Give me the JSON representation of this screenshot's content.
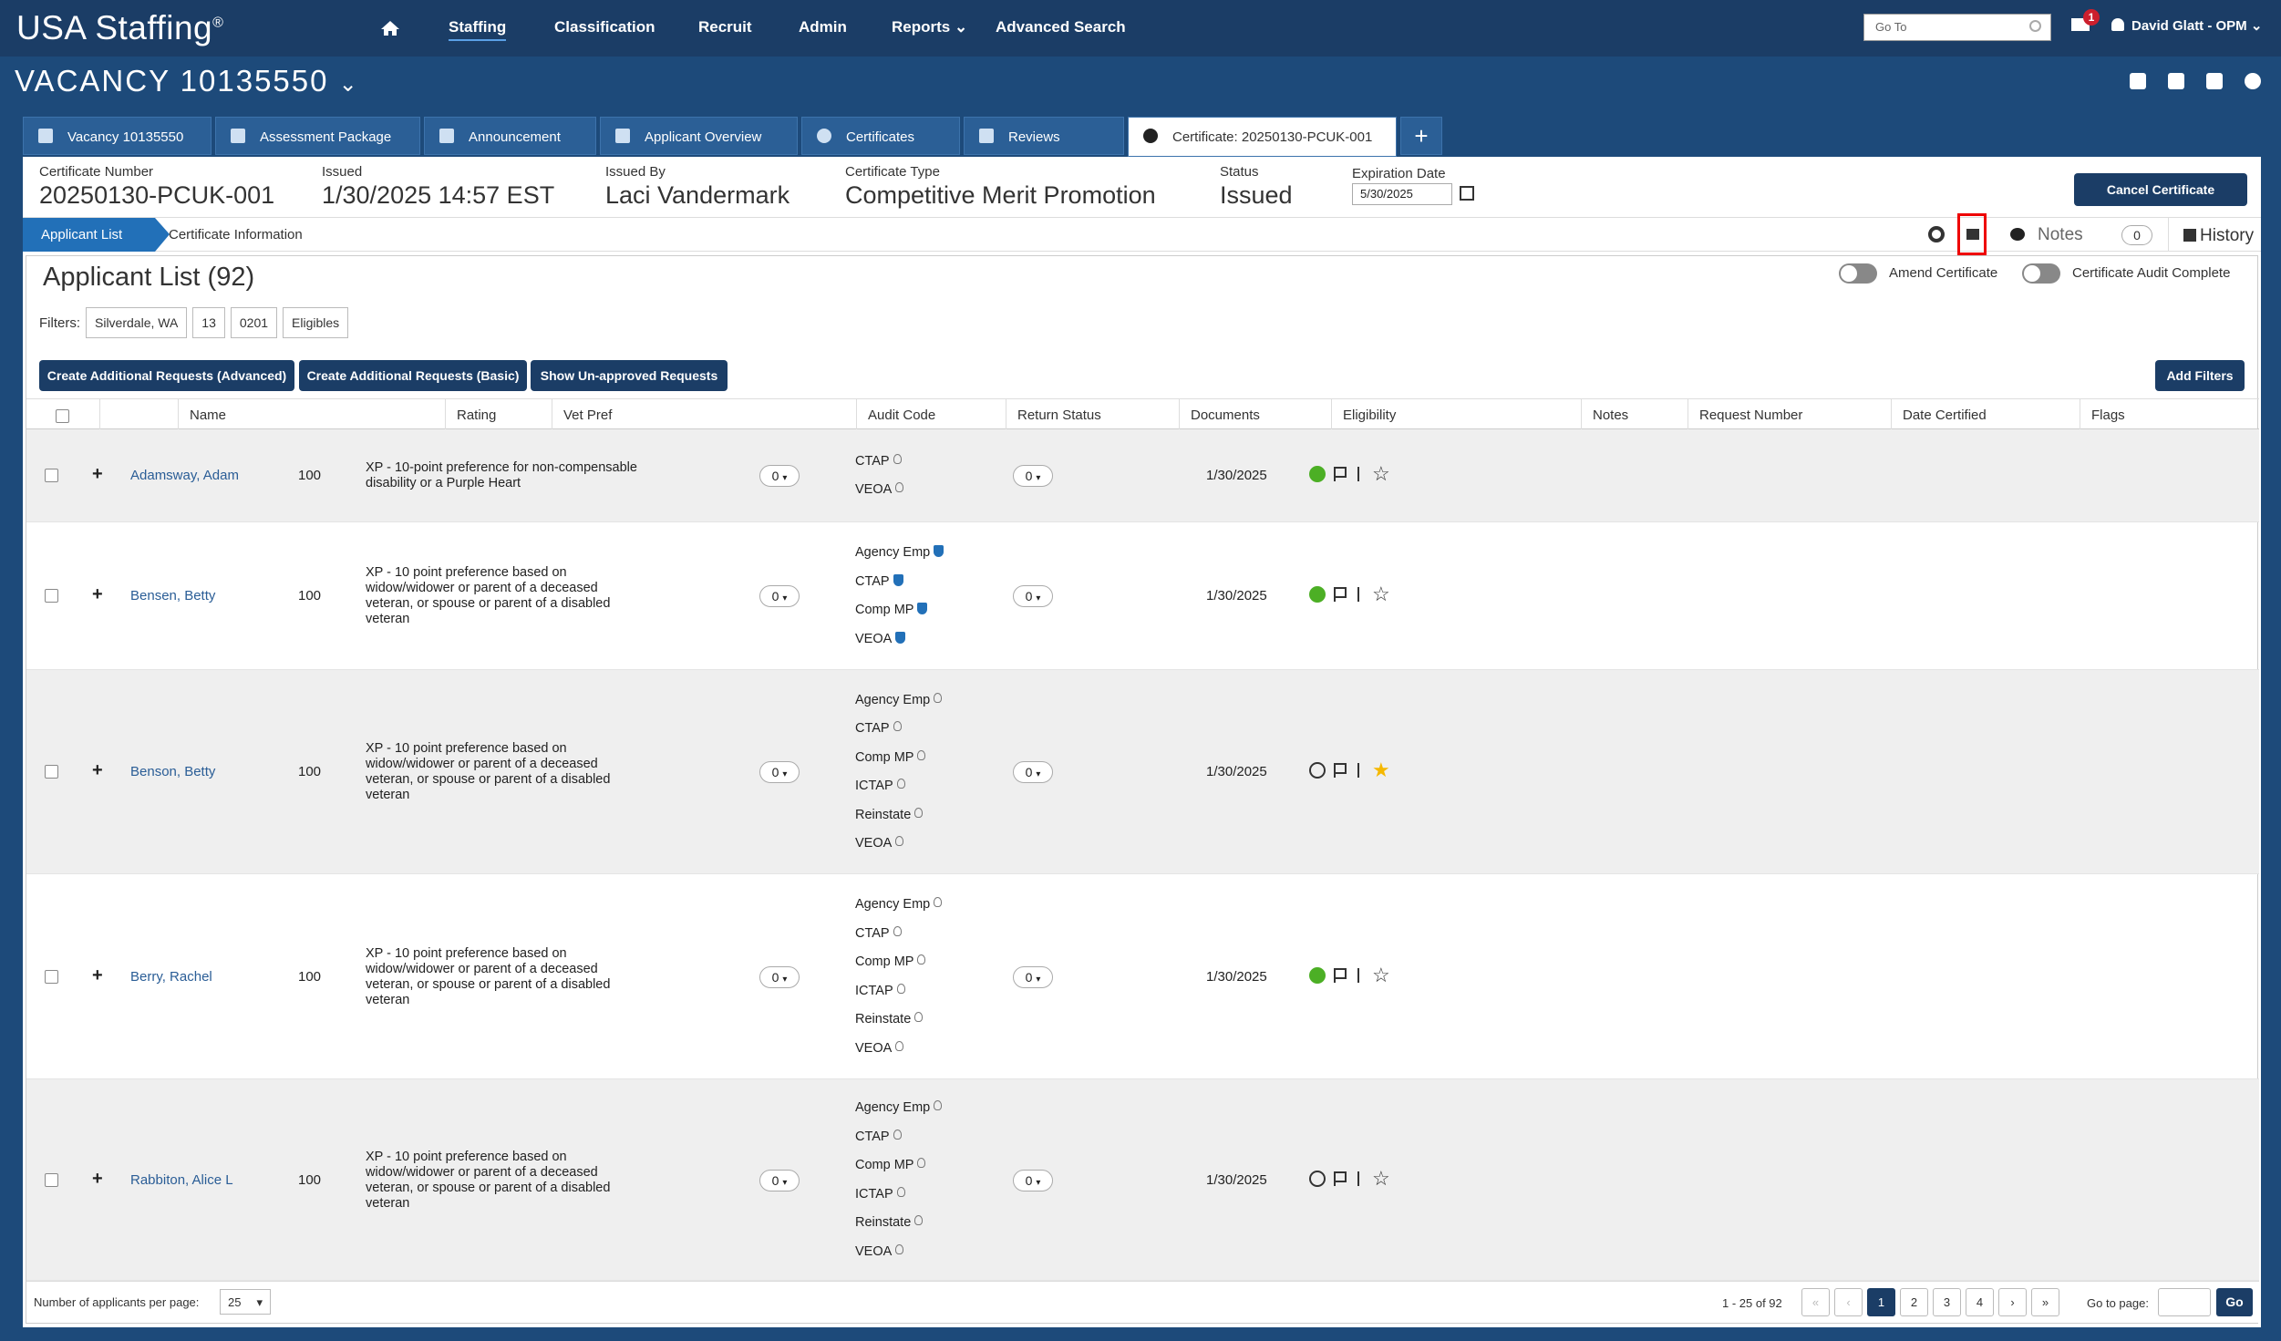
{
  "app": {
    "logo": "USA Staffing",
    "logo_mark": "®"
  },
  "nav": {
    "items": [
      "Staffing",
      "Classification",
      "Recruit",
      "Admin",
      "Reports",
      "Advanced Search"
    ],
    "goto_placeholder": "Go To",
    "mail_count": "1",
    "user": "David Glatt - OPM"
  },
  "vacancy": {
    "title": "VACANCY 10135550"
  },
  "tabs": [
    "Vacancy 10135550",
    "Assessment Package",
    "Announcement",
    "Applicant Overview",
    "Certificates",
    "Reviews",
    "Certificate: 20250130-PCUK-001"
  ],
  "cert": {
    "number_label": "Certificate Number",
    "number": "20250130-PCUK-001",
    "issued_label": "Issued",
    "issued": "1/30/2025 14:57 EST",
    "by_label": "Issued By",
    "by": "Laci Vandermark",
    "type_label": "Certificate Type",
    "type": "Competitive Merit Promotion",
    "status_label": "Status",
    "status": "Issued",
    "exp_label": "Expiration Date",
    "exp": "5/30/2025",
    "cancel": "Cancel Certificate"
  },
  "subnav": {
    "applicant_list": "Applicant List",
    "cert_info": "Certificate Information",
    "notes": "Notes",
    "notes_count": "0",
    "history": "History"
  },
  "list": {
    "title": "Applicant List (92)",
    "amend": "Amend Certificate",
    "audit": "Certificate Audit Complete",
    "filters_label": "Filters:",
    "filters": [
      "Silverdale, WA",
      "13",
      "0201",
      "Eligibles"
    ],
    "btn_adv": "Create Additional Requests (Advanced)",
    "btn_basic": "Create Additional Requests (Basic)",
    "btn_unapproved": "Show Un-approved Requests",
    "btn_filters": "Add Filters",
    "columns": [
      "Name",
      "Rating",
      "Vet Pref",
      "Audit Code",
      "Return Status",
      "Documents",
      "Eligibility",
      "Notes",
      "Request Number",
      "Date Certified",
      "Flags"
    ]
  },
  "rows": [
    {
      "name": "Adamsway, Adam",
      "rating": "100",
      "vet": "XP - 10-point preference for non-compensable disability or a Purple Heart",
      "docs": "0",
      "notes": "0",
      "date": "1/30/2025",
      "elig": [
        {
          "t": "CTAP",
          "v": false
        },
        {
          "t": "VEOA",
          "v": false
        }
      ],
      "check": "green",
      "star": "empty"
    },
    {
      "name": "Bensen, Betty",
      "rating": "100",
      "vet": "XP - 10 point preference based on widow/widower or parent of a deceased veteran, or spouse or parent of a disabled veteran",
      "docs": "0",
      "notes": "0",
      "date": "1/30/2025",
      "elig": [
        {
          "t": "Agency Emp",
          "v": true
        },
        {
          "t": "CTAP",
          "v": true
        },
        {
          "t": "Comp MP",
          "v": true
        },
        {
          "t": "VEOA",
          "v": true
        }
      ],
      "check": "green",
      "star": "empty"
    },
    {
      "name": "Benson, Betty",
      "rating": "100",
      "vet": "XP - 10 point preference based on widow/widower or parent of a deceased veteran, or spouse or parent of a disabled veteran",
      "docs": "0",
      "notes": "0",
      "date": "1/30/2025",
      "elig": [
        {
          "t": "Agency Emp",
          "v": false
        },
        {
          "t": "CTAP",
          "v": false
        },
        {
          "t": "Comp MP",
          "v": false
        },
        {
          "t": "ICTAP",
          "v": false
        },
        {
          "t": "Reinstate",
          "v": false
        },
        {
          "t": "VEOA",
          "v": false
        }
      ],
      "check": "outline",
      "star": "gold"
    },
    {
      "name": "Berry, Rachel",
      "rating": "100",
      "vet": "XP - 10 point preference based on widow/widower or parent of a deceased veteran, or spouse or parent of a disabled veteran",
      "docs": "0",
      "notes": "0",
      "date": "1/30/2025",
      "elig": [
        {
          "t": "Agency Emp",
          "v": false
        },
        {
          "t": "CTAP",
          "v": false
        },
        {
          "t": "Comp MP",
          "v": false
        },
        {
          "t": "ICTAP",
          "v": false
        },
        {
          "t": "Reinstate",
          "v": false
        },
        {
          "t": "VEOA",
          "v": false
        }
      ],
      "check": "green",
      "star": "empty"
    },
    {
      "name": "Rabbiton, Alice L",
      "rating": "100",
      "vet": "XP - 10 point preference based on widow/widower or parent of a deceased veteran, or spouse or parent of a disabled veteran",
      "docs": "0",
      "notes": "0",
      "date": "1/30/2025",
      "elig": [
        {
          "t": "Agency Emp",
          "v": false
        },
        {
          "t": "CTAP",
          "v": false
        },
        {
          "t": "Comp MP",
          "v": false
        },
        {
          "t": "ICTAP",
          "v": false
        },
        {
          "t": "Reinstate",
          "v": false
        },
        {
          "t": "VEOA",
          "v": false
        }
      ],
      "check": "outline",
      "star": "empty"
    }
  ],
  "footer": {
    "perpage_label": "Number of applicants per page:",
    "perpage": "25",
    "info": "1 - 25 of 92",
    "pages": [
      "1",
      "2",
      "3",
      "4"
    ],
    "goto_label": "Go to page:",
    "go": "Go"
  }
}
